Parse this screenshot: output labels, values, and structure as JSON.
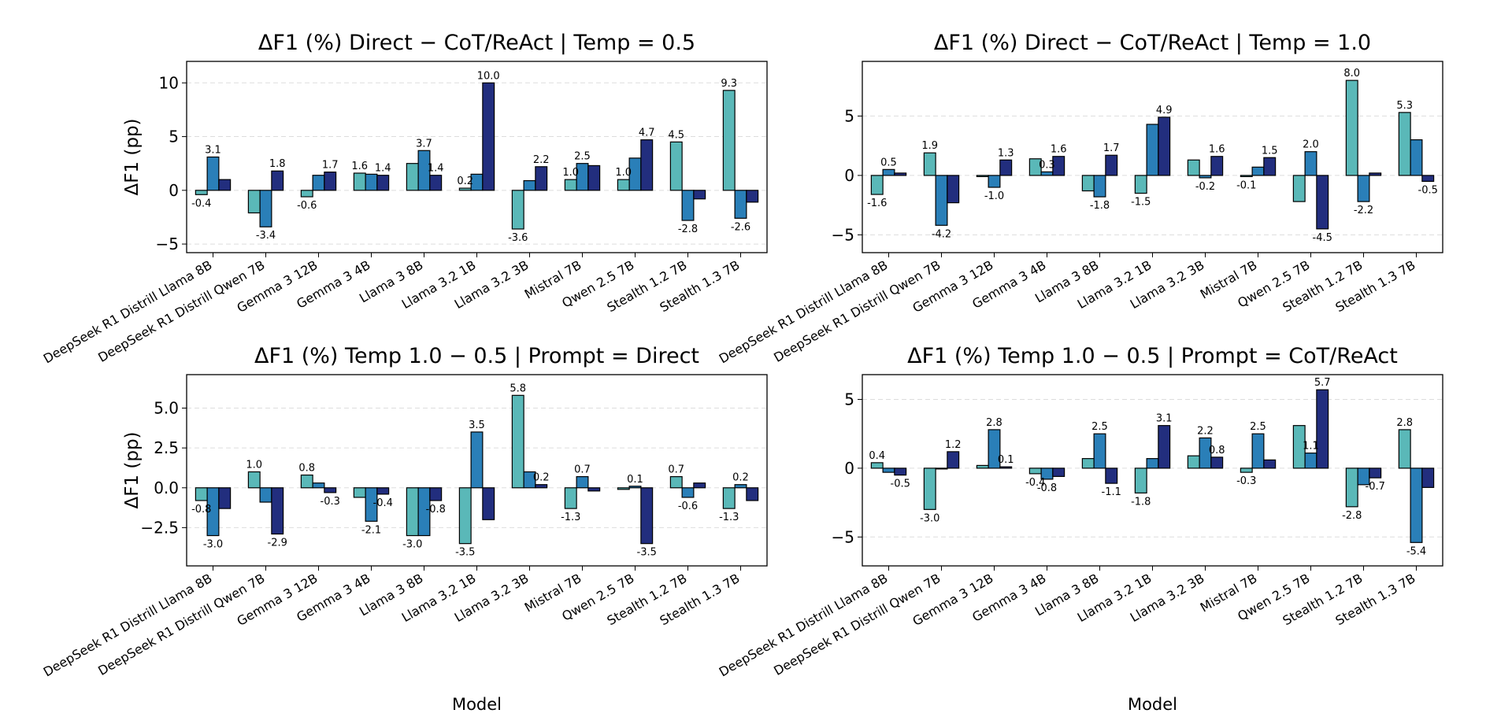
{
  "style": {
    "bar_colors": [
      "#5ab8b8",
      "#2a7fb8",
      "#222e7e"
    ],
    "grid_color": "#dddddd"
  },
  "chart_data": [
    {
      "type": "bar",
      "title": "ΔF1 (%) Direct − CoT/ReAct | Temp = 0.5",
      "ylabel": "ΔF1 (pp)",
      "xlabel": "",
      "ylim": [
        -5.8,
        12.0
      ],
      "yticks": [
        -5,
        0,
        5,
        10
      ],
      "ytick_labels": [
        "−5",
        "0",
        "5",
        "10"
      ],
      "grid": "y-dashed",
      "categories": [
        "DeepSeek R1 Distrill Llama 8B",
        "DeepSeek R1 Distrill Qwen 7B",
        "Gemma 3 12B",
        "Gemma 3 4B",
        "Llama 3 8B",
        "Llama 3.2 1B",
        "Llama 3.2 3B",
        "Mistral 7B",
        "Qwen 2.5 7B",
        "Stealth 1.2 7B",
        "Stealth 1.3 7B"
      ],
      "series": [
        {
          "name": "series-1",
          "values": [
            -0.4,
            -2.1,
            -0.6,
            1.6,
            2.5,
            0.2,
            -3.6,
            1.0,
            1.0,
            4.5,
            9.3
          ],
          "labels": [
            "-0.4",
            "",
            "-0.6",
            "1.6",
            "",
            "0.2",
            "-3.6",
            "1.0",
            "1.0",
            "4.5",
            "9.3"
          ]
        },
        {
          "name": "series-2",
          "values": [
            3.1,
            -3.4,
            1.4,
            1.5,
            3.7,
            1.5,
            0.9,
            2.5,
            3.0,
            -2.8,
            -2.6
          ],
          "labels": [
            "3.1",
            "-3.4",
            "",
            "",
            "3.7",
            "",
            "",
            "2.5",
            "",
            "-2.8",
            "-2.6"
          ]
        },
        {
          "name": "series-3",
          "values": [
            1.0,
            1.8,
            1.7,
            1.4,
            1.4,
            10.0,
            2.2,
            2.3,
            4.7,
            -0.8,
            -1.1
          ],
          "labels": [
            "",
            "1.8",
            "1.7",
            "1.4",
            "1.4",
            "10.0",
            "2.2",
            "",
            "4.7",
            "",
            ""
          ]
        }
      ]
    },
    {
      "type": "bar",
      "title": "ΔF1 (%) Direct − CoT/ReAct | Temp = 1.0",
      "ylabel": "",
      "xlabel": "",
      "ylim": [
        -6.5,
        9.6
      ],
      "yticks": [
        -5,
        0,
        5
      ],
      "ytick_labels": [
        "−5",
        "0",
        "5"
      ],
      "grid": "y-dashed",
      "categories": [
        "DeepSeek R1 Distrill Llama 8B",
        "DeepSeek R1 Distrill Qwen 7B",
        "Gemma 3 12B",
        "Gemma 3 4B",
        "Llama 3 8B",
        "Llama 3.2 1B",
        "Llama 3.2 3B",
        "Mistral 7B",
        "Qwen 2.5 7B",
        "Stealth 1.2 7B",
        "Stealth 1.3 7B"
      ],
      "series": [
        {
          "name": "series-1",
          "values": [
            -1.6,
            1.9,
            -0.1,
            1.4,
            -1.3,
            -1.5,
            1.3,
            -0.1,
            -2.2,
            8.0,
            5.3
          ],
          "labels": [
            "-1.6",
            "1.9",
            "",
            "",
            "",
            "-1.5",
            "",
            "-0.1",
            "",
            "8.0",
            "5.3"
          ]
        },
        {
          "name": "series-2",
          "values": [
            0.5,
            -4.2,
            -1.0,
            0.3,
            -1.8,
            4.3,
            -0.2,
            0.7,
            2.0,
            -2.2,
            3.0
          ],
          "labels": [
            "0.5",
            "-4.2",
            "-1.0",
            "0.3",
            "-1.8",
            "",
            "-0.2",
            "",
            "2.0",
            "-2.2",
            ""
          ]
        },
        {
          "name": "series-3",
          "values": [
            0.2,
            -2.3,
            1.3,
            1.6,
            1.7,
            4.9,
            1.6,
            1.5,
            -4.5,
            0.2,
            -0.5
          ],
          "labels": [
            "",
            "",
            "1.3",
            "1.6",
            "1.7",
            "4.9",
            "1.6",
            "1.5",
            "-4.5",
            "",
            "-0.5"
          ]
        }
      ]
    },
    {
      "type": "bar",
      "title": "ΔF1 (%) Temp 1.0 − 0.5 | Prompt = Direct",
      "ylabel": "ΔF1 (pp)",
      "xlabel": "Model",
      "ylim": [
        -4.9,
        7.1
      ],
      "yticks": [
        -2.5,
        0,
        2.5,
        5.0
      ],
      "ytick_labels": [
        "−2.5",
        "0.0",
        "2.5",
        "5.0"
      ],
      "grid": "y-dashed",
      "categories": [
        "DeepSeek R1 Distrill Llama 8B",
        "DeepSeek R1 Distrill Qwen 7B",
        "Gemma 3 12B",
        "Gemma 3 4B",
        "Llama 3 8B",
        "Llama 3.2 1B",
        "Llama 3.2 3B",
        "Mistral 7B",
        "Qwen 2.5 7B",
        "Stealth 1.2 7B",
        "Stealth 1.3 7B"
      ],
      "series": [
        {
          "name": "series-1",
          "values": [
            -0.8,
            1.0,
            0.8,
            -0.6,
            -3.0,
            -3.5,
            5.8,
            -1.3,
            -0.1,
            0.7,
            -1.3
          ],
          "labels": [
            "-0.8",
            "1.0",
            "0.8",
            "",
            "-3.0",
            "-3.5",
            "5.8",
            "-1.3",
            "",
            "0.7",
            "-1.3"
          ]
        },
        {
          "name": "series-2",
          "values": [
            -3.0,
            -0.9,
            0.3,
            -2.1,
            -3.0,
            3.5,
            1.0,
            0.7,
            0.1,
            -0.6,
            0.2
          ],
          "labels": [
            "-3.0",
            "",
            "",
            "-2.1",
            "",
            "3.5",
            "",
            "0.7",
            "0.1",
            "-0.6",
            "0.2"
          ]
        },
        {
          "name": "series-3",
          "values": [
            -1.3,
            -2.9,
            -0.3,
            -0.4,
            -0.8,
            -2.0,
            0.2,
            -0.2,
            -3.5,
            0.3,
            -0.8
          ],
          "labels": [
            "",
            "-2.9",
            "-0.3",
            "-0.4",
            "-0.8",
            "",
            "0.2",
            "",
            "-3.5",
            "",
            ""
          ]
        }
      ]
    },
    {
      "type": "bar",
      "title": "ΔF1 (%) Temp 1.0 − 0.5 | Prompt = CoT/ReAct",
      "ylabel": "",
      "xlabel": "Model",
      "ylim": [
        -7.1,
        6.8
      ],
      "yticks": [
        -5,
        0,
        5
      ],
      "ytick_labels": [
        "−5",
        "0",
        "5"
      ],
      "grid": "y-dashed",
      "categories": [
        "DeepSeek R1 Distrill Llama 8B",
        "DeepSeek R1 Distrill Qwen 7B",
        "Gemma 3 12B",
        "Gemma 3 4B",
        "Llama 3 8B",
        "Llama 3.2 1B",
        "Llama 3.2 3B",
        "Mistral 7B",
        "Qwen 2.5 7B",
        "Stealth 1.2 7B",
        "Stealth 1.3 7B"
      ],
      "series": [
        {
          "name": "series-1",
          "values": [
            0.4,
            -3.0,
            0.2,
            -0.4,
            0.7,
            -1.8,
            0.9,
            -0.3,
            3.1,
            -2.8,
            2.8
          ],
          "labels": [
            "0.4",
            "-3.0",
            "",
            "-0.4",
            "",
            "-1.8",
            "",
            "-0.3",
            "",
            "-2.8",
            "2.8"
          ]
        },
        {
          "name": "series-2",
          "values": [
            -0.3,
            0.0,
            2.8,
            -0.8,
            2.5,
            0.7,
            2.2,
            2.5,
            1.1,
            -1.2,
            -5.4
          ],
          "labels": [
            "",
            "",
            "2.8",
            "-0.8",
            "2.5",
            "",
            "2.2",
            "2.5",
            "1.1",
            "",
            "-5.4"
          ]
        },
        {
          "name": "series-3",
          "values": [
            -0.5,
            1.2,
            0.1,
            -0.6,
            -1.1,
            3.1,
            0.8,
            0.6,
            5.7,
            -0.7,
            -1.4
          ],
          "labels": [
            "-0.5",
            "1.2",
            "0.1",
            "",
            "-1.1",
            "3.1",
            "0.8",
            "",
            "5.7",
            "-0.7",
            ""
          ]
        }
      ]
    }
  ]
}
